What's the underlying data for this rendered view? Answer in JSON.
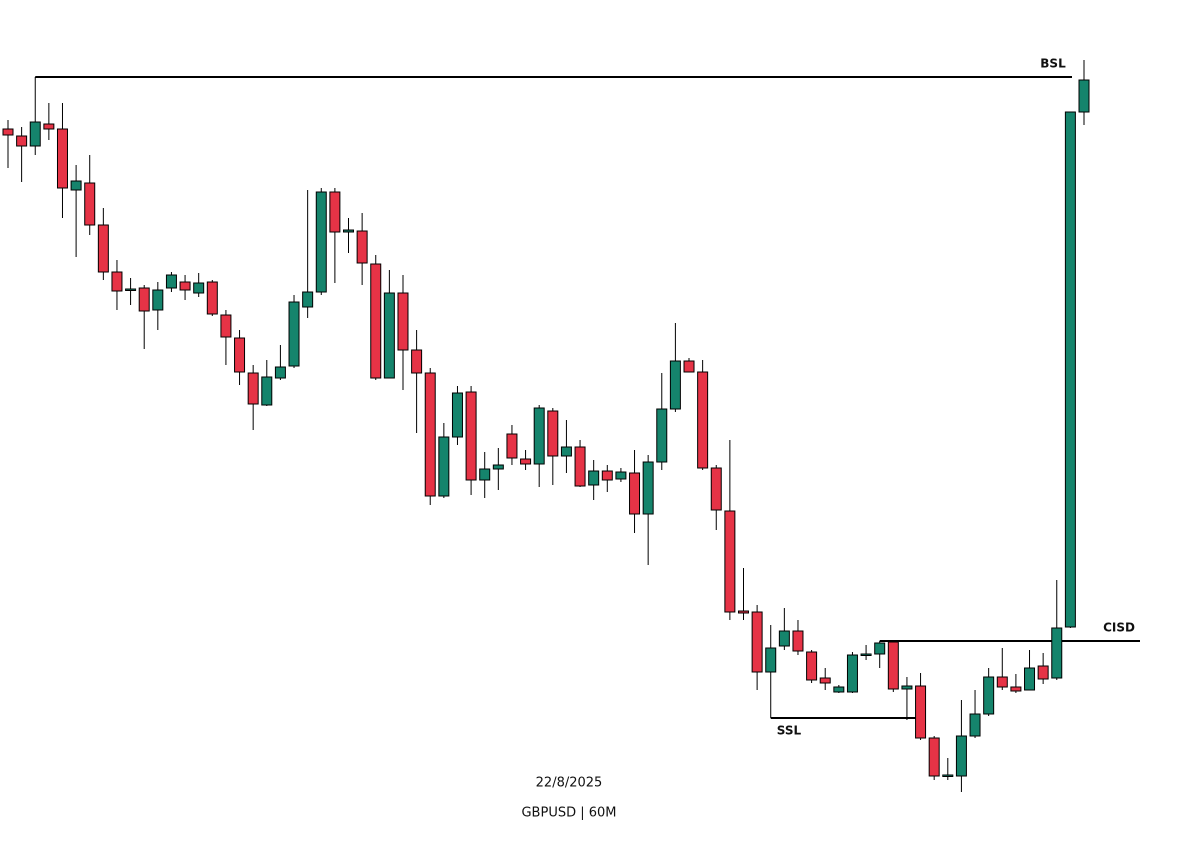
{
  "chart_data": {
    "type": "candlestick",
    "title": "GBPUSD | 60M",
    "date": "22/8/2025",
    "up_color": "#15846c",
    "down_color": "#e63346",
    "ylim": [
      0,
      852
    ],
    "open": [
      723,
      716,
      706,
      728,
      723,
      662,
      669,
      627,
      580,
      562,
      564,
      542,
      564,
      570,
      559,
      570,
      537,
      514,
      479,
      447,
      474,
      486,
      545,
      560,
      660,
      620,
      621,
      588,
      474,
      559,
      502,
      479,
      356,
      415,
      460,
      372,
      383,
      418,
      393,
      388,
      441,
      396,
      405,
      367,
      381,
      373,
      379,
      338,
      390,
      443,
      491,
      480,
      384,
      341,
      241,
      240,
      180,
      206,
      221,
      200,
      174,
      160,
      160,
      197,
      198,
      210,
      163,
      166,
      114,
      76,
      76,
      116,
      138,
      175,
      165,
      162,
      186,
      174,
      225,
      740
    ],
    "high": [
      732,
      725,
      775,
      749,
      749,
      687,
      697,
      644,
      592,
      574,
      567,
      570,
      580,
      577,
      579,
      572,
      542,
      522,
      487,
      492,
      507,
      557,
      662,
      664,
      664,
      634,
      639,
      597,
      582,
      577,
      522,
      484,
      429,
      466,
      466,
      400,
      404,
      427,
      402,
      447,
      444,
      432,
      412,
      392,
      387,
      384,
      402,
      397,
      479,
      529,
      494,
      492,
      387,
      412,
      284,
      247,
      227,
      244,
      232,
      202,
      184,
      167,
      200,
      207,
      211,
      211,
      175,
      179,
      116,
      94,
      152,
      162,
      184,
      204,
      178,
      202,
      199,
      272,
      740,
      792
    ],
    "low": [
      684,
      670,
      697,
      712,
      634,
      595,
      617,
      572,
      542,
      547,
      503,
      522,
      560,
      552,
      555,
      536,
      487,
      467,
      422,
      446,
      472,
      484,
      534,
      557,
      569,
      599,
      567,
      472,
      474,
      462,
      419,
      347,
      354,
      407,
      357,
      354,
      362,
      387,
      382,
      365,
      367,
      379,
      365,
      352,
      360,
      370,
      319,
      287,
      382,
      440,
      480,
      382,
      322,
      232,
      232,
      162,
      134,
      202,
      197,
      169,
      162,
      159,
      159,
      192,
      184,
      160,
      132,
      112,
      72,
      72,
      60,
      114,
      136,
      162,
      159,
      162,
      168,
      172,
      224,
      727
    ],
    "close": [
      717,
      706,
      730,
      723,
      664,
      671,
      627,
      580,
      561,
      563,
      541,
      562,
      577,
      562,
      569,
      538,
      515,
      480,
      448,
      475,
      485,
      550,
      560,
      660,
      620,
      622,
      589,
      474,
      559,
      502,
      479,
      356,
      415,
      459,
      372,
      383,
      387,
      394,
      388,
      444,
      396,
      405,
      366,
      381,
      372,
      380,
      338,
      390,
      443,
      491,
      480,
      384,
      342,
      240,
      239,
      180,
      204,
      221,
      201,
      172,
      169,
      165,
      197,
      198,
      209,
      163,
      166,
      114,
      76,
      77,
      116,
      138,
      175,
      165,
      161,
      184,
      173,
      224,
      740,
      772
    ],
    "levels": [
      {
        "label": "BSL",
        "value": 775
      },
      {
        "label": "CISD",
        "value": 211
      },
      {
        "label": "SSL",
        "value": 134
      }
    ]
  }
}
